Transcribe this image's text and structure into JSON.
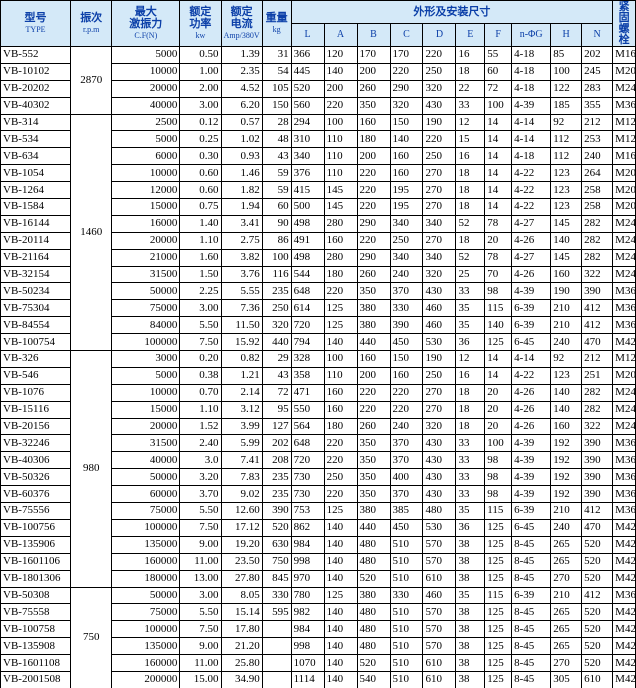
{
  "header": {
    "type": [
      "型号",
      "TYPE"
    ],
    "rpm": [
      "振次",
      "r.p.m"
    ],
    "force": [
      "最大",
      "激振力",
      "C.F(N)"
    ],
    "power": [
      "额定",
      "功率",
      "kw"
    ],
    "current": [
      "额定",
      "电流",
      "Amp/380V"
    ],
    "weight": [
      "重量",
      "kg"
    ],
    "dims_title": "外形及安装尺寸",
    "dims": [
      "L",
      "A",
      "B",
      "C",
      "D",
      "E",
      "F",
      "n-ΦG",
      "H",
      "N"
    ],
    "bolt": "紧固螺栓"
  },
  "groups": [
    {
      "rpm": "2870",
      "rows": [
        [
          "VB-552",
          "5000",
          "0.50",
          "1.39",
          "31",
          "366",
          "120",
          "170",
          "170",
          "220",
          "16",
          "55",
          "4-18",
          "85",
          "202",
          "M16"
        ],
        [
          "VB-10102",
          "10000",
          "1.00",
          "2.35",
          "54",
          "445",
          "140",
          "200",
          "220",
          "250",
          "18",
          "60",
          "4-18",
          "100",
          "245",
          "M20"
        ],
        [
          "VB-20202",
          "20000",
          "2.00",
          "4.52",
          "105",
          "520",
          "200",
          "260",
          "290",
          "320",
          "22",
          "72",
          "4-18",
          "122",
          "283",
          "M24"
        ],
        [
          "VB-40302",
          "40000",
          "3.00",
          "6.20",
          "150",
          "560",
          "220",
          "350",
          "320",
          "430",
          "33",
          "100",
          "4-39",
          "185",
          "355",
          "M36"
        ]
      ]
    },
    {
      "rpm": "1460",
      "rows": [
        [
          "VB-314",
          "2500",
          "0.12",
          "0.57",
          "28",
          "294",
          "100",
          "160",
          "150",
          "190",
          "12",
          "14",
          "4-14",
          "92",
          "212",
          "M12"
        ],
        [
          "VB-534",
          "5000",
          "0.25",
          "1.02",
          "48",
          "310",
          "110",
          "180",
          "140",
          "220",
          "15",
          "14",
          "4-14",
          "112",
          "253",
          "M12"
        ],
        [
          "VB-634",
          "6000",
          "0.30",
          "0.93",
          "43",
          "340",
          "110",
          "200",
          "160",
          "250",
          "16",
          "14",
          "4-18",
          "112",
          "240",
          "M16"
        ],
        [
          "VB-1054",
          "10000",
          "0.60",
          "1.46",
          "59",
          "376",
          "110",
          "220",
          "160",
          "270",
          "18",
          "14",
          "4-22",
          "123",
          "264",
          "M20"
        ],
        [
          "VB-1264",
          "12000",
          "0.60",
          "1.82",
          "59",
          "415",
          "145",
          "220",
          "195",
          "270",
          "18",
          "14",
          "4-22",
          "123",
          "258",
          "M20"
        ],
        [
          "VB-1584",
          "15000",
          "0.75",
          "1.94",
          "60",
          "500",
          "145",
          "220",
          "195",
          "270",
          "18",
          "14",
          "4-22",
          "123",
          "258",
          "M20"
        ],
        [
          "VB-16144",
          "16000",
          "1.40",
          "3.41",
          "90",
          "498",
          "280",
          "290",
          "340",
          "340",
          "52",
          "78",
          "4-27",
          "145",
          "282",
          "M24"
        ],
        [
          "VB-20114",
          "20000",
          "1.10",
          "2.75",
          "86",
          "491",
          "160",
          "220",
          "250",
          "270",
          "18",
          "20",
          "4-26",
          "140",
          "282",
          "M24"
        ],
        [
          "VB-21164",
          "21000",
          "1.60",
          "3.82",
          "100",
          "498",
          "280",
          "290",
          "340",
          "340",
          "52",
          "78",
          "4-27",
          "145",
          "282",
          "M24"
        ],
        [
          "VB-32154",
          "31500",
          "1.50",
          "3.76",
          "116",
          "544",
          "180",
          "260",
          "240",
          "320",
          "25",
          "70",
          "4-26",
          "160",
          "322",
          "M24"
        ],
        [
          "VB-50234",
          "50000",
          "2.25",
          "5.55",
          "235",
          "648",
          "220",
          "350",
          "370",
          "430",
          "33",
          "98",
          "4-39",
          "190",
          "390",
          "M36"
        ],
        [
          "VB-75304",
          "75000",
          "3.00",
          "7.36",
          "250",
          "614",
          "125",
          "380",
          "330",
          "460",
          "35",
          "115",
          "6-39",
          "210",
          "412",
          "M36"
        ],
        [
          "VB-84554",
          "84000",
          "5.50",
          "11.50",
          "320",
          "720",
          "125",
          "380",
          "390",
          "460",
          "35",
          "140",
          "6-39",
          "210",
          "412",
          "M36"
        ],
        [
          "VB-100754",
          "100000",
          "7.50",
          "15.92",
          "440",
          "794",
          "140",
          "440",
          "450",
          "530",
          "36",
          "125",
          "6-45",
          "240",
          "470",
          "M42"
        ]
      ]
    },
    {
      "rpm": "980",
      "rows": [
        [
          "VB-326",
          "3000",
          "0.20",
          "0.82",
          "29",
          "328",
          "100",
          "160",
          "150",
          "190",
          "12",
          "14",
          "4-14",
          "92",
          "212",
          "M12"
        ],
        [
          "VB-546",
          "5000",
          "0.38",
          "1.21",
          "43",
          "358",
          "110",
          "200",
          "160",
          "250",
          "16",
          "14",
          "4-22",
          "123",
          "251",
          "M20"
        ],
        [
          "VB-1076",
          "10000",
          "0.70",
          "2.14",
          "72",
          "471",
          "160",
          "220",
          "220",
          "270",
          "18",
          "20",
          "4-26",
          "140",
          "282",
          "M24"
        ],
        [
          "VB-15116",
          "15000",
          "1.10",
          "3.12",
          "95",
          "550",
          "160",
          "220",
          "220",
          "270",
          "18",
          "20",
          "4-26",
          "140",
          "282",
          "M24"
        ],
        [
          "VB-20156",
          "20000",
          "1.52",
          "3.99",
          "127",
          "564",
          "180",
          "260",
          "240",
          "320",
          "18",
          "20",
          "4-26",
          "160",
          "322",
          "M24"
        ],
        [
          "VB-32246",
          "31500",
          "2.40",
          "5.99",
          "202",
          "648",
          "220",
          "350",
          "370",
          "430",
          "33",
          "100",
          "4-39",
          "192",
          "390",
          "M36"
        ],
        [
          "VB-40306",
          "40000",
          "3.0",
          "7.41",
          "208",
          "720",
          "220",
          "350",
          "370",
          "430",
          "33",
          "98",
          "4-39",
          "192",
          "390",
          "M36"
        ],
        [
          "VB-50326",
          "50000",
          "3.20",
          "7.83",
          "235",
          "730",
          "250",
          "350",
          "400",
          "430",
          "33",
          "98",
          "4-39",
          "192",
          "390",
          "M36"
        ],
        [
          "VB-60376",
          "60000",
          "3.70",
          "9.02",
          "235",
          "730",
          "220",
          "350",
          "370",
          "430",
          "33",
          "98",
          "4-39",
          "192",
          "390",
          "M36"
        ],
        [
          "VB-75556",
          "75000",
          "5.50",
          "12.60",
          "390",
          "753",
          "125",
          "380",
          "385",
          "480",
          "35",
          "115",
          "6-39",
          "210",
          "412",
          "M36"
        ],
        [
          "VB-100756",
          "100000",
          "7.50",
          "17.12",
          "520",
          "862",
          "140",
          "440",
          "450",
          "530",
          "36",
          "125",
          "6-45",
          "240",
          "470",
          "M42"
        ],
        [
          "VB-135906",
          "135000",
          "9.00",
          "19.20",
          "630",
          "984",
          "140",
          "480",
          "510",
          "570",
          "38",
          "125",
          "8-45",
          "265",
          "520",
          "M42"
        ],
        [
          "VB-1601106",
          "160000",
          "11.00",
          "23.50",
          "750",
          "998",
          "140",
          "480",
          "510",
          "570",
          "38",
          "125",
          "8-45",
          "265",
          "520",
          "M42"
        ],
        [
          "VB-1801306",
          "180000",
          "13.00",
          "27.80",
          "845",
          "970",
          "140",
          "520",
          "510",
          "610",
          "38",
          "125",
          "8-45",
          "270",
          "520",
          "M42"
        ]
      ]
    },
    {
      "rpm": "750",
      "rows": [
        [
          "VB-50308",
          "50000",
          "3.00",
          "8.05",
          "330",
          "780",
          "125",
          "380",
          "330",
          "460",
          "35",
          "115",
          "6-39",
          "210",
          "412",
          "M36"
        ],
        [
          "VB-75558",
          "75000",
          "5.50",
          "15.14",
          "595",
          "982",
          "140",
          "480",
          "510",
          "570",
          "38",
          "125",
          "8-45",
          "265",
          "520",
          "M42"
        ],
        [
          "VB-100758",
          "100000",
          "7.50",
          "17.80",
          null,
          "984",
          "140",
          "480",
          "510",
          "570",
          "38",
          "125",
          "8-45",
          "265",
          "520",
          "M42"
        ],
        [
          "VB-135908",
          "135000",
          "9.00",
          "21.20",
          null,
          "998",
          "140",
          "480",
          "510",
          "570",
          "38",
          "125",
          "8-45",
          "265",
          "520",
          "M42"
        ],
        [
          "VB-1601108",
          "160000",
          "11.00",
          "25.80",
          null,
          "1070",
          "140",
          "520",
          "510",
          "610",
          "38",
          "125",
          "8-45",
          "270",
          "520",
          "M42"
        ],
        [
          "VB-2001508",
          "200000",
          "15.00",
          "34.90",
          null,
          "1114",
          "140",
          "540",
          "510",
          "610",
          "38",
          "125",
          "8-45",
          "305",
          "610",
          "M42"
        ]
      ]
    }
  ]
}
